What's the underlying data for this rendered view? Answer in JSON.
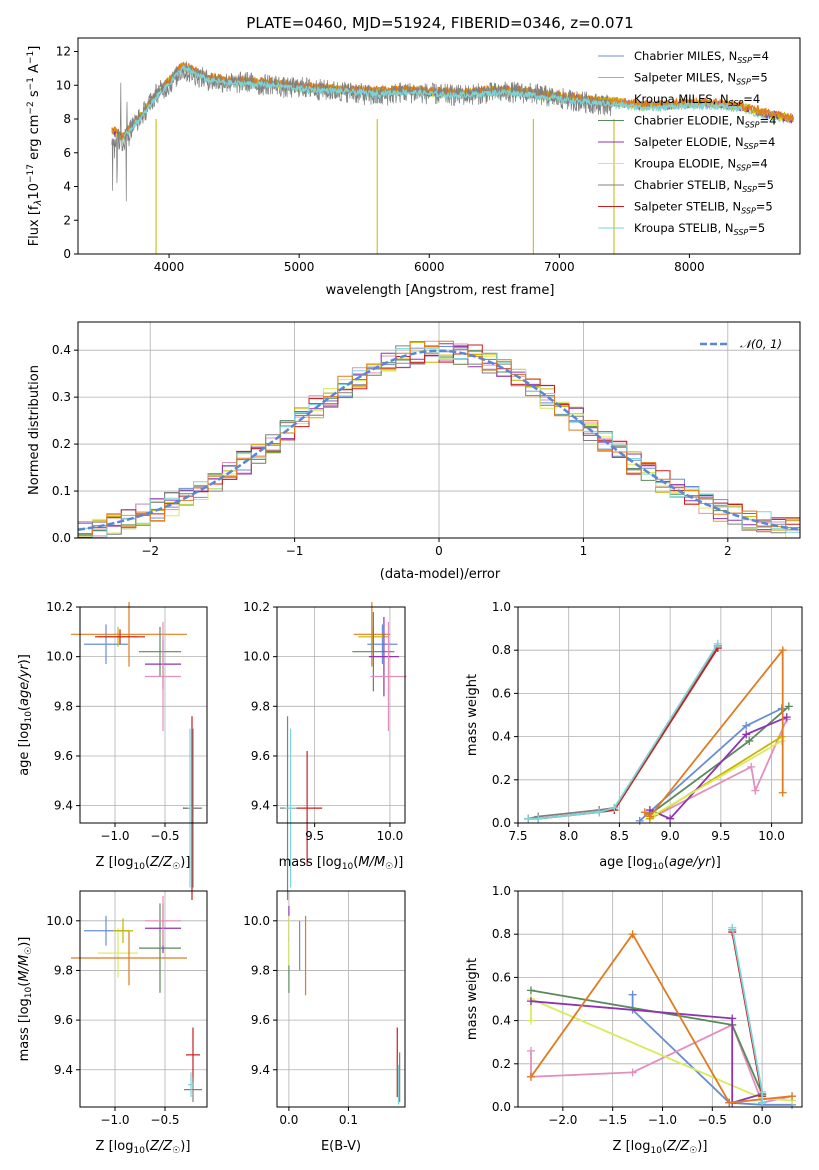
{
  "colors": {
    "Chabrier MILES": "#6a8ed6",
    "Salpeter MILES": "#e38fbd",
    "Kroupa MILES": "#c8b400",
    "Chabrier ELODIE": "#5a8a5a",
    "Salpeter ELODIE": "#8e34b0",
    "Kroupa ELODIE": "#d8ec5a",
    "Chabrier STELIB": "#808080",
    "Salpeter STELIB": "#c81e1e",
    "Kroupa STELIB": "#7dd4d8",
    "orange": "#e07b20",
    "grid": "#b0b0b0"
  },
  "chart_data": [
    {
      "id": "spectrum",
      "type": "line",
      "title": "PLATE=0460, MJD=51924, FIBERID=0346, z=0.071",
      "xlabel": "wavelength [Angstrom, rest frame]",
      "ylabel_parts": [
        "Flux [f",
        "λ",
        "10",
        "−17",
        " erg cm",
        "−2",
        " s",
        "−1",
        " A",
        "−1",
        "]"
      ],
      "xlim": [
        3300,
        8850
      ],
      "ylim": [
        0,
        12.8
      ],
      "xticks": [
        4000,
        5000,
        6000,
        7000,
        8000
      ],
      "yticks": [
        0,
        2,
        4,
        6,
        8,
        10,
        12
      ],
      "grid": false,
      "legend_position": "top-right",
      "legend": [
        {
          "name": "Chabrier MILES",
          "nssp": "4",
          "color_key": "Chabrier MILES"
        },
        {
          "name": "Salpeter MILES",
          "nssp": "5",
          "color_key": "Salpeter MILES"
        },
        {
          "name": "Kroupa MILES",
          "nssp": "4",
          "color_key": "Kroupa MILES"
        },
        {
          "name": "Chabrier ELODIE",
          "nssp": "4",
          "color_key": "Chabrier ELODIE"
        },
        {
          "name": "Salpeter ELODIE",
          "nssp": "4",
          "color_key": "Salpeter ELODIE"
        },
        {
          "name": "Kroupa ELODIE",
          "nssp": "4",
          "color_key": "Kroupa ELODIE"
        },
        {
          "name": "Chabrier STELIB",
          "nssp": "5",
          "color_key": "Chabrier STELIB"
        },
        {
          "name": "Salpeter STELIB",
          "nssp": "5",
          "color_key": "Salpeter STELIB"
        },
        {
          "name": "Kroupa STELIB",
          "nssp": "5",
          "color_key": "Kroupa STELIB"
        }
      ],
      "data_curve": {
        "x": [
          3560,
          3650,
          3700,
          3800,
          3900,
          4000,
          4100,
          4200,
          4300,
          4400,
          4500,
          4600,
          4700,
          4800,
          4900,
          5000,
          5200,
          5400,
          5600,
          5800,
          6000,
          6200,
          6400,
          6600,
          6800,
          7000,
          7200,
          7400
        ],
        "y": [
          7.0,
          6.6,
          7.4,
          8.3,
          9.5,
          10.0,
          10.9,
          10.6,
          10.3,
          10.2,
          10.1,
          10.2,
          10.0,
          10.1,
          9.8,
          9.9,
          9.7,
          9.6,
          9.3,
          9.6,
          9.5,
          9.4,
          9.5,
          9.6,
          9.5,
          9.2,
          9.0,
          8.8
        ]
      },
      "model_curve": {
        "x": [
          3560,
          3650,
          3700,
          3800,
          3900,
          4000,
          4100,
          4200,
          4300,
          4400,
          4500,
          4600,
          4800,
          5000,
          5200,
          5400,
          5600,
          5800,
          6000,
          6200,
          6400,
          6600,
          6800,
          7000,
          7200,
          7400,
          7600,
          7800,
          8000,
          8200,
          8400,
          8600,
          8800
        ],
        "y": [
          7.2,
          6.8,
          7.4,
          8.2,
          9.3,
          10.1,
          11.0,
          10.7,
          10.3,
          10.2,
          10.1,
          10.1,
          10.0,
          9.8,
          9.7,
          9.6,
          9.5,
          9.6,
          9.5,
          9.4,
          9.5,
          9.6,
          9.4,
          9.2,
          9.0,
          8.9,
          8.7,
          8.7,
          8.8,
          8.8,
          8.6,
          8.2,
          7.9
        ]
      }
    },
    {
      "id": "residuals",
      "type": "line",
      "xlabel": "(data-model)/error",
      "ylabel": "Normed distribution",
      "xlim": [
        -2.5,
        2.5
      ],
      "ylim": [
        0,
        0.46
      ],
      "xticks": [
        -2,
        -1,
        0,
        1,
        2
      ],
      "yticks": [
        0.0,
        0.1,
        0.2,
        0.3,
        0.4
      ],
      "grid": true,
      "legend_position": "top-right",
      "reference": {
        "label": "𝒩(0, 1)",
        "color": "#5b86d6",
        "dashed": true
      },
      "histogram_bin_width": 0.1
    },
    {
      "id": "age-vs-Z",
      "type": "scatter",
      "xlabel": "Z [log10(Z/Z☉)]",
      "ylabel": "age [log10(age/yr)]",
      "xlim": [
        -1.35,
        -0.08
      ],
      "ylim": [
        9.33,
        10.2
      ],
      "xticks": [
        -1.0,
        -0.5
      ],
      "yticks": [
        9.4,
        9.6,
        9.8,
        10.0,
        10.2
      ],
      "grid": true,
      "points": [
        {
          "s": "Chabrier MILES",
          "x": -1.09,
          "y": 10.05,
          "dx": 0.22,
          "dy": 0.08
        },
        {
          "s": "Kroupa MILES",
          "x": -0.97,
          "y": 10.08,
          "dx": 0.2,
          "dy": 0.04
        },
        {
          "s": "orange",
          "x": -0.86,
          "y": 10.09,
          "dx": 0.58,
          "dy": 0.13
        },
        {
          "s": "Salpeter STELIB",
          "x": -0.95,
          "y": 10.08,
          "dx": 0.25,
          "dy": 0.03
        },
        {
          "s": "Chabrier ELODIE",
          "x": -0.55,
          "y": 10.02,
          "dx": 0.21,
          "dy": 0.1
        },
        {
          "s": "Salpeter ELODIE",
          "x": -0.52,
          "y": 9.97,
          "dx": 0.18,
          "dy": 0.1
        },
        {
          "s": "Salpeter MILES",
          "x": -0.52,
          "y": 9.92,
          "dx": 0.18,
          "dy": 0.22
        },
        {
          "s": "Salpeter STELIB",
          "x": -0.23,
          "y": 9.39,
          "dx": 0.09,
          "dy": 0.37
        },
        {
          "s": "Chabrier STELIB",
          "x": -0.22,
          "y": 9.39,
          "dx": 0.09,
          "dy": 0.32
        },
        {
          "s": "Kroupa STELIB",
          "x": -0.25,
          "y": 9.39,
          "dx": 0.02,
          "dy": 0.32
        }
      ]
    },
    {
      "id": "age-vs-mass",
      "type": "scatter",
      "xlabel": "mass [log10(M/M☉)]",
      "xlim": [
        9.25,
        10.1
      ],
      "ylim": [
        9.33,
        10.2
      ],
      "xticks": [
        9.5,
        10.0
      ],
      "yticks": [
        9.4,
        9.6,
        9.8,
        10.0,
        10.2
      ],
      "grid": true,
      "points": [
        {
          "s": "Chabrier MILES",
          "x": 9.95,
          "y": 10.05,
          "dx": 0.1,
          "dy": 0.08
        },
        {
          "s": "Kroupa MILES",
          "x": 9.89,
          "y": 10.08,
          "dx": 0.1,
          "dy": 0.04
        },
        {
          "s": "orange",
          "x": 9.88,
          "y": 10.09,
          "dx": 0.12,
          "dy": 0.13
        },
        {
          "s": "Chabrier ELODIE",
          "x": 9.89,
          "y": 10.02,
          "dx": 0.14,
          "dy": 0.16
        },
        {
          "s": "Salpeter ELODIE",
          "x": 9.96,
          "y": 10.0,
          "dx": 0.1,
          "dy": 0.16
        },
        {
          "s": "Salpeter MILES",
          "x": 9.99,
          "y": 9.92,
          "dx": 0.12,
          "dy": 0.22
        },
        {
          "s": "Salpeter STELIB",
          "x": 9.45,
          "y": 9.39,
          "dx": 0.1,
          "dy": 0.23
        },
        {
          "s": "Chabrier STELIB",
          "x": 9.32,
          "y": 9.39,
          "dx": 0.05,
          "dy": 0.37
        },
        {
          "s": "Kroupa STELIB",
          "x": 9.34,
          "y": 9.39,
          "dx": 0.04,
          "dy": 0.32
        }
      ]
    },
    {
      "id": "weight-vs-age",
      "type": "line",
      "xlabel": "age [log10(age/yr)]",
      "ylabel": "mass weight",
      "xlim": [
        7.5,
        10.3
      ],
      "ylim": [
        0,
        1.0
      ],
      "xticks": [
        7.5,
        8.0,
        8.5,
        9.0,
        9.5,
        10.0
      ],
      "yticks": [
        0.0,
        0.2,
        0.4,
        0.6,
        0.8,
        1.0
      ],
      "grid": true,
      "series": [
        {
          "s": "Chabrier MILES",
          "x": [
            8.7,
            9.75,
            10.1
          ],
          "y": [
            0.01,
            0.45,
            0.53
          ]
        },
        {
          "s": "Salpeter MILES",
          "x": [
            8.8,
            9.8,
            9.84,
            10.15
          ],
          "y": [
            0.02,
            0.26,
            0.15,
            0.48
          ]
        },
        {
          "s": "Kroupa MILES",
          "x": [
            8.8,
            10.1
          ],
          "y": [
            0.02,
            0.4
          ]
        },
        {
          "s": "Chabrier ELODIE",
          "x": [
            8.8,
            9.78,
            10.17
          ],
          "y": [
            0.04,
            0.38,
            0.54
          ]
        },
        {
          "s": "Salpeter ELODIE",
          "x": [
            8.8,
            9.0,
            9.75,
            10.15
          ],
          "y": [
            0.06,
            0.02,
            0.41,
            0.49
          ]
        },
        {
          "s": "Kroupa ELODIE",
          "x": [
            8.85,
            10.1
          ],
          "y": [
            0.04,
            0.38
          ]
        },
        {
          "s": "orange",
          "x": [
            8.75,
            8.8,
            10.11,
            10.11
          ],
          "y": [
            0.05,
            0.03,
            0.8,
            0.14
          ]
        },
        {
          "s": "Chabrier STELIB",
          "x": [
            7.6,
            7.7,
            8.3,
            8.45,
            9.47
          ],
          "y": [
            0.02,
            0.03,
            0.06,
            0.07,
            0.82
          ]
        },
        {
          "s": "Salpeter STELIB",
          "x": [
            7.6,
            7.7,
            8.3,
            8.45,
            9.47
          ],
          "y": [
            0.02,
            0.02,
            0.05,
            0.06,
            0.81
          ]
        },
        {
          "s": "Kroupa STELIB",
          "x": [
            7.6,
            7.7,
            8.3,
            8.45,
            9.47
          ],
          "y": [
            0.02,
            0.02,
            0.05,
            0.07,
            0.83
          ]
        }
      ]
    },
    {
      "id": "mass-vs-Z",
      "type": "scatter",
      "xlabel": "Z [log10(Z/Z☉)]",
      "ylabel": "mass [log10(M/M☉)]",
      "xlim": [
        -1.35,
        -0.08
      ],
      "ylim": [
        9.25,
        10.12
      ],
      "xticks": [
        -1.0,
        -0.5
      ],
      "yticks": [
        9.4,
        9.6,
        9.8,
        10.0
      ],
      "grid": true,
      "points": [
        {
          "s": "Chabrier MILES",
          "x": -1.09,
          "y": 9.96,
          "dx": 0.22,
          "dy": 0.06
        },
        {
          "s": "Kroupa ELODIE",
          "x": -0.97,
          "y": 9.87,
          "dx": 0.2,
          "dy": 0.1
        },
        {
          "s": "orange",
          "x": -0.86,
          "y": 9.85,
          "dx": 0.58,
          "dy": 0.11
        },
        {
          "s": "Kroupa MILES",
          "x": -0.92,
          "y": 9.96,
          "dx": 0.1,
          "dy": 0.05
        },
        {
          "s": "Chabrier ELODIE",
          "x": -0.55,
          "y": 9.89,
          "dx": 0.21,
          "dy": 0.18
        },
        {
          "s": "Salpeter ELODIE",
          "x": -0.52,
          "y": 9.97,
          "dx": 0.18,
          "dy": 0.1
        },
        {
          "s": "Salpeter MILES",
          "x": -0.52,
          "y": 10.0,
          "dx": 0.18,
          "dy": 0.1
        },
        {
          "s": "Salpeter STELIB",
          "x": -0.22,
          "y": 9.46,
          "dx": 0.07,
          "dy": 0.11
        },
        {
          "s": "Chabrier STELIB",
          "x": -0.22,
          "y": 9.32,
          "dx": 0.09,
          "dy": 0.05
        },
        {
          "s": "Kroupa STELIB",
          "x": -0.24,
          "y": 9.34,
          "dx": 0.03,
          "dy": 0.05
        }
      ]
    },
    {
      "id": "mass-vs-ebv",
      "type": "scatter",
      "xlabel": "E(B-V)",
      "xlim": [
        -0.02,
        0.195
      ],
      "ylim": [
        9.25,
        10.12
      ],
      "xticks": [
        0.0,
        0.1
      ],
      "yticks": [
        9.4,
        9.6,
        9.8,
        10.0
      ],
      "grid": true,
      "points": [
        {
          "s": "Salpeter ELODIE",
          "x": 0.0,
          "y": 9.99,
          "dy": 0.07
        },
        {
          "s": "Chabrier ELODIE",
          "x": 0.0,
          "y": 9.82,
          "dy": 0.11
        },
        {
          "s": "Kroupa ELODIE",
          "x": 0.0,
          "y": 9.92,
          "dy": 0.1
        },
        {
          "s": "Chabrier MILES",
          "x": 0.018,
          "y": 9.9,
          "dy": 0.1
        },
        {
          "s": "orange",
          "x": 0.028,
          "y": 9.86,
          "dy": 0.16
        },
        {
          "s": "Salpeter STELIB",
          "x": 0.182,
          "y": 9.43,
          "dy": 0.14
        },
        {
          "s": "Chabrier STELIB",
          "x": 0.186,
          "y": 9.37,
          "dy": 0.1
        },
        {
          "s": "Kroupa STELIB",
          "x": 0.184,
          "y": 9.34,
          "dy": 0.08
        }
      ]
    },
    {
      "id": "weight-vs-Z",
      "type": "line",
      "xlabel": "Z [log10(Z/Z☉)]",
      "ylabel": "mass weight",
      "xlim": [
        -2.45,
        0.4
      ],
      "ylim": [
        0,
        1.0
      ],
      "xticks": [
        -2.0,
        -1.5,
        -1.0,
        -0.5,
        0.0
      ],
      "yticks": [
        0.0,
        0.2,
        0.4,
        0.6,
        0.8,
        1.0
      ],
      "grid": true,
      "series": [
        {
          "s": "Chabrier MILES",
          "x": [
            -1.3,
            -1.3,
            -0.33,
            0.0,
            0.3
          ],
          "y": [
            0.52,
            0.45,
            0.02,
            0.01,
            0.01
          ]
        },
        {
          "s": "Salpeter MILES",
          "x": [
            -2.32,
            -2.32,
            -1.3,
            -0.3,
            0.0,
            0.3
          ],
          "y": [
            0.26,
            0.14,
            0.16,
            0.38,
            0.02,
            0.05
          ]
        },
        {
          "s": "Kroupa ELODIE",
          "x": [
            -2.32,
            -2.32,
            0.0,
            0.3
          ],
          "y": [
            0.4,
            0.5,
            0.04,
            0.03
          ]
        },
        {
          "s": "Chabrier ELODIE",
          "x": [
            -2.32,
            -0.3,
            0.0
          ],
          "y": [
            0.54,
            0.38,
            0.06
          ]
        },
        {
          "s": "Salpeter ELODIE",
          "x": [
            -2.32,
            -0.3,
            -0.3,
            0.0
          ],
          "y": [
            0.49,
            0.41,
            0.02,
            0.06
          ]
        },
        {
          "s": "orange",
          "x": [
            -2.32,
            -1.3,
            -0.33,
            0.3
          ],
          "y": [
            0.14,
            0.8,
            0.02,
            0.05
          ]
        },
        {
          "s": "Chabrier STELIB",
          "x": [
            -0.3,
            0.0,
            0.0
          ],
          "y": [
            0.82,
            0.06,
            0.02
          ]
        },
        {
          "s": "Salpeter STELIB",
          "x": [
            -0.3,
            0.0
          ],
          "y": [
            0.81,
            0.05
          ]
        },
        {
          "s": "Kroupa STELIB",
          "x": [
            -0.3,
            0.0,
            0.0
          ],
          "y": [
            0.83,
            0.07,
            0.02
          ]
        }
      ]
    }
  ]
}
